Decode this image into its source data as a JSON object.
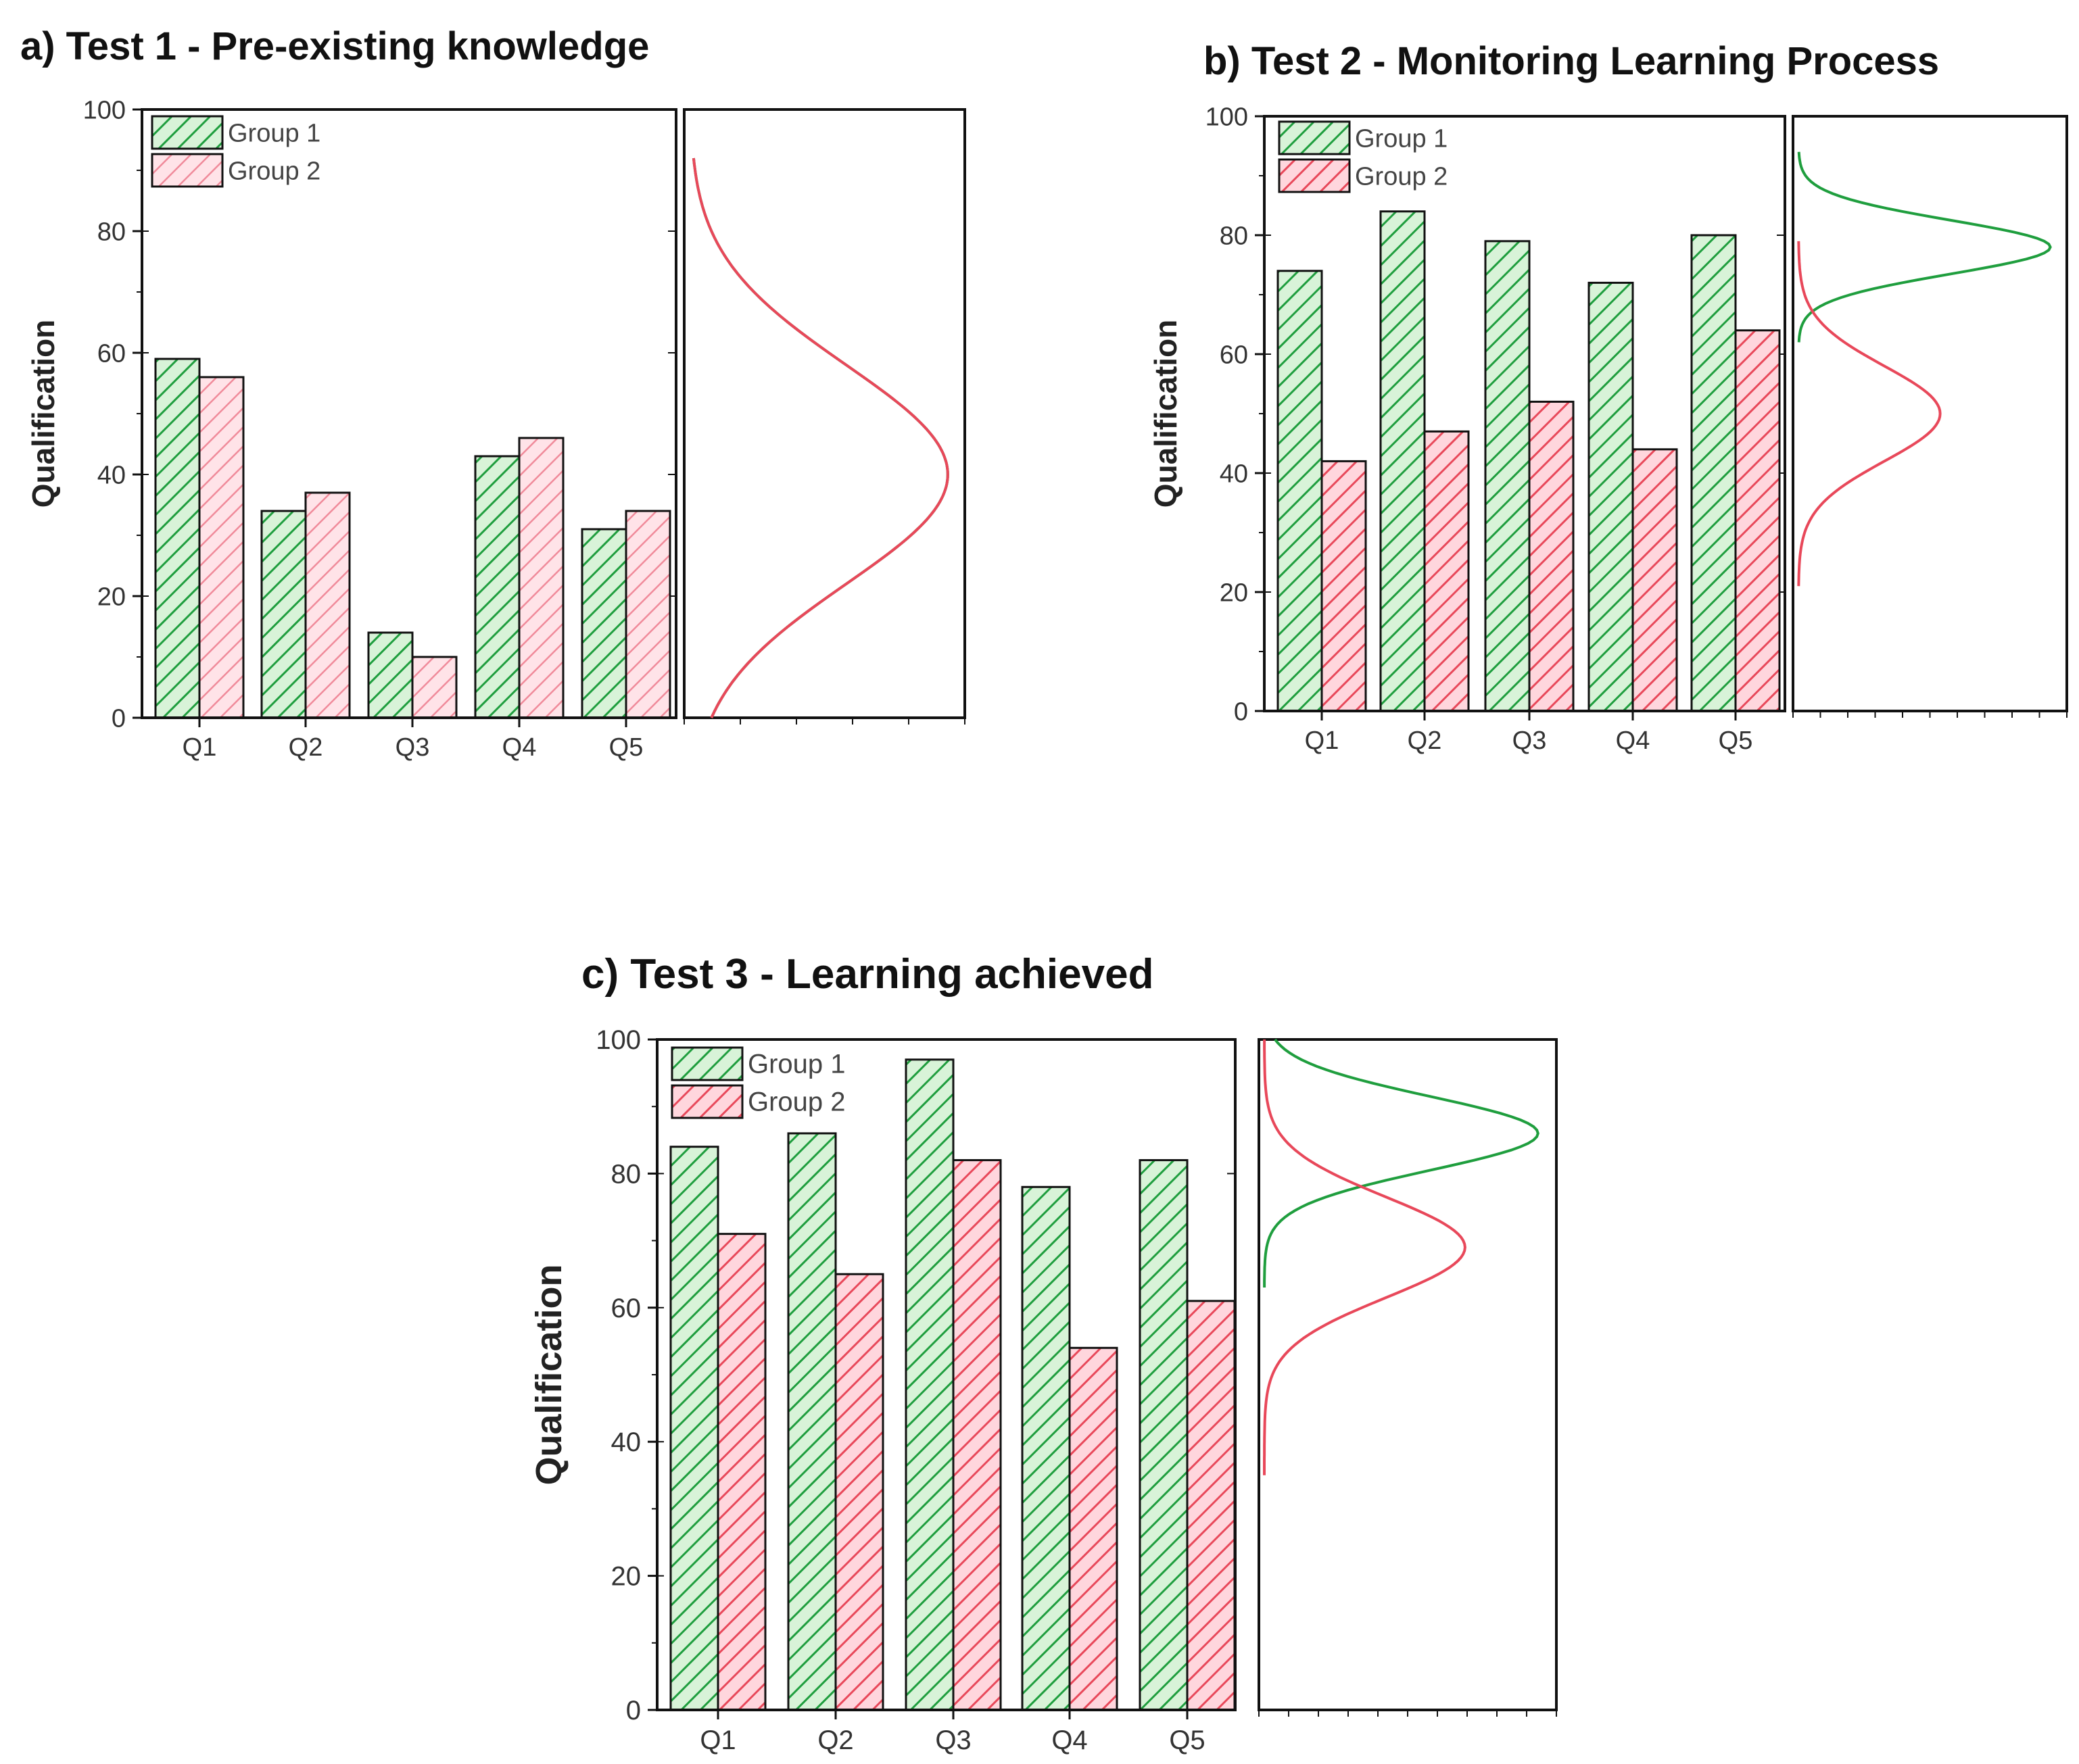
{
  "colors": {
    "group1_stroke": "#1f9e3e",
    "group1_fill": "#d8f3d8",
    "group2_stroke": "#e8485a",
    "group2_fill": "#ffd6dd",
    "group2_fill_light": "#ffe3e8",
    "axis": "#111111"
  },
  "chart_data": [
    {
      "type": "bar",
      "title": "a) Test 1 - Pre-existing knowledge",
      "xlabel": "",
      "ylabel": "Qualification",
      "ylim": [
        0,
        100
      ],
      "yticks": [
        "0",
        "20",
        "40",
        "60",
        "80",
        "100"
      ],
      "categories": [
        "Q1",
        "Q2",
        "Q3",
        "Q4",
        "Q5"
      ],
      "series": [
        {
          "name": "Group 1",
          "values": [
            59,
            34,
            14,
            43,
            31
          ]
        },
        {
          "name": "Group 2",
          "values": [
            56,
            37,
            10,
            46,
            34
          ]
        }
      ],
      "legend": "top-left",
      "distribution": [
        {
          "series": "Group 1",
          "mean": 40,
          "sd": 18,
          "range": [
            0,
            92
          ]
        },
        {
          "series": "Group 2",
          "mean": 40,
          "sd": 18,
          "range": [
            0,
            92
          ]
        }
      ]
    },
    {
      "type": "bar",
      "title": "b) Test 2 - Monitoring Learning Process",
      "xlabel": "",
      "ylabel": "Qualification",
      "ylim": [
        0,
        100
      ],
      "yticks": [
        "0",
        "20",
        "40",
        "60",
        "80",
        "100"
      ],
      "categories": [
        "Q1",
        "Q2",
        "Q3",
        "Q4",
        "Q5"
      ],
      "series": [
        {
          "name": "Group 1",
          "values": [
            74,
            84,
            79,
            72,
            80
          ]
        },
        {
          "name": "Group 2",
          "values": [
            42,
            47,
            52,
            44,
            64
          ]
        }
      ],
      "legend": "top-left",
      "distribution": [
        {
          "series": "Group 1",
          "mean": 78,
          "sd": 4.5,
          "range": [
            62,
            94
          ]
        },
        {
          "series": "Group 2",
          "mean": 50,
          "sd": 8,
          "range": [
            21,
            79
          ]
        }
      ]
    },
    {
      "type": "bar",
      "title": "c) Test 3 - Learning achieved",
      "xlabel": "",
      "ylabel": "Qualification",
      "ylim": [
        0,
        100
      ],
      "yticks": [
        "0",
        "20",
        "40",
        "60",
        "80",
        "100"
      ],
      "categories": [
        "Q1",
        "Q2",
        "Q3",
        "Q4",
        "Q5"
      ],
      "series": [
        {
          "name": "Group 1",
          "values": [
            84,
            86,
            97,
            78,
            82
          ]
        },
        {
          "name": "Group 2",
          "values": [
            71,
            65,
            82,
            54,
            61
          ]
        }
      ],
      "legend": "top-left",
      "distribution": [
        {
          "series": "Group 1",
          "mean": 86,
          "sd": 5.5,
          "range": [
            63,
            100
          ]
        },
        {
          "series": "Group 2",
          "mean": 69,
          "sd": 7.5,
          "range": [
            35,
            100
          ]
        }
      ]
    }
  ]
}
